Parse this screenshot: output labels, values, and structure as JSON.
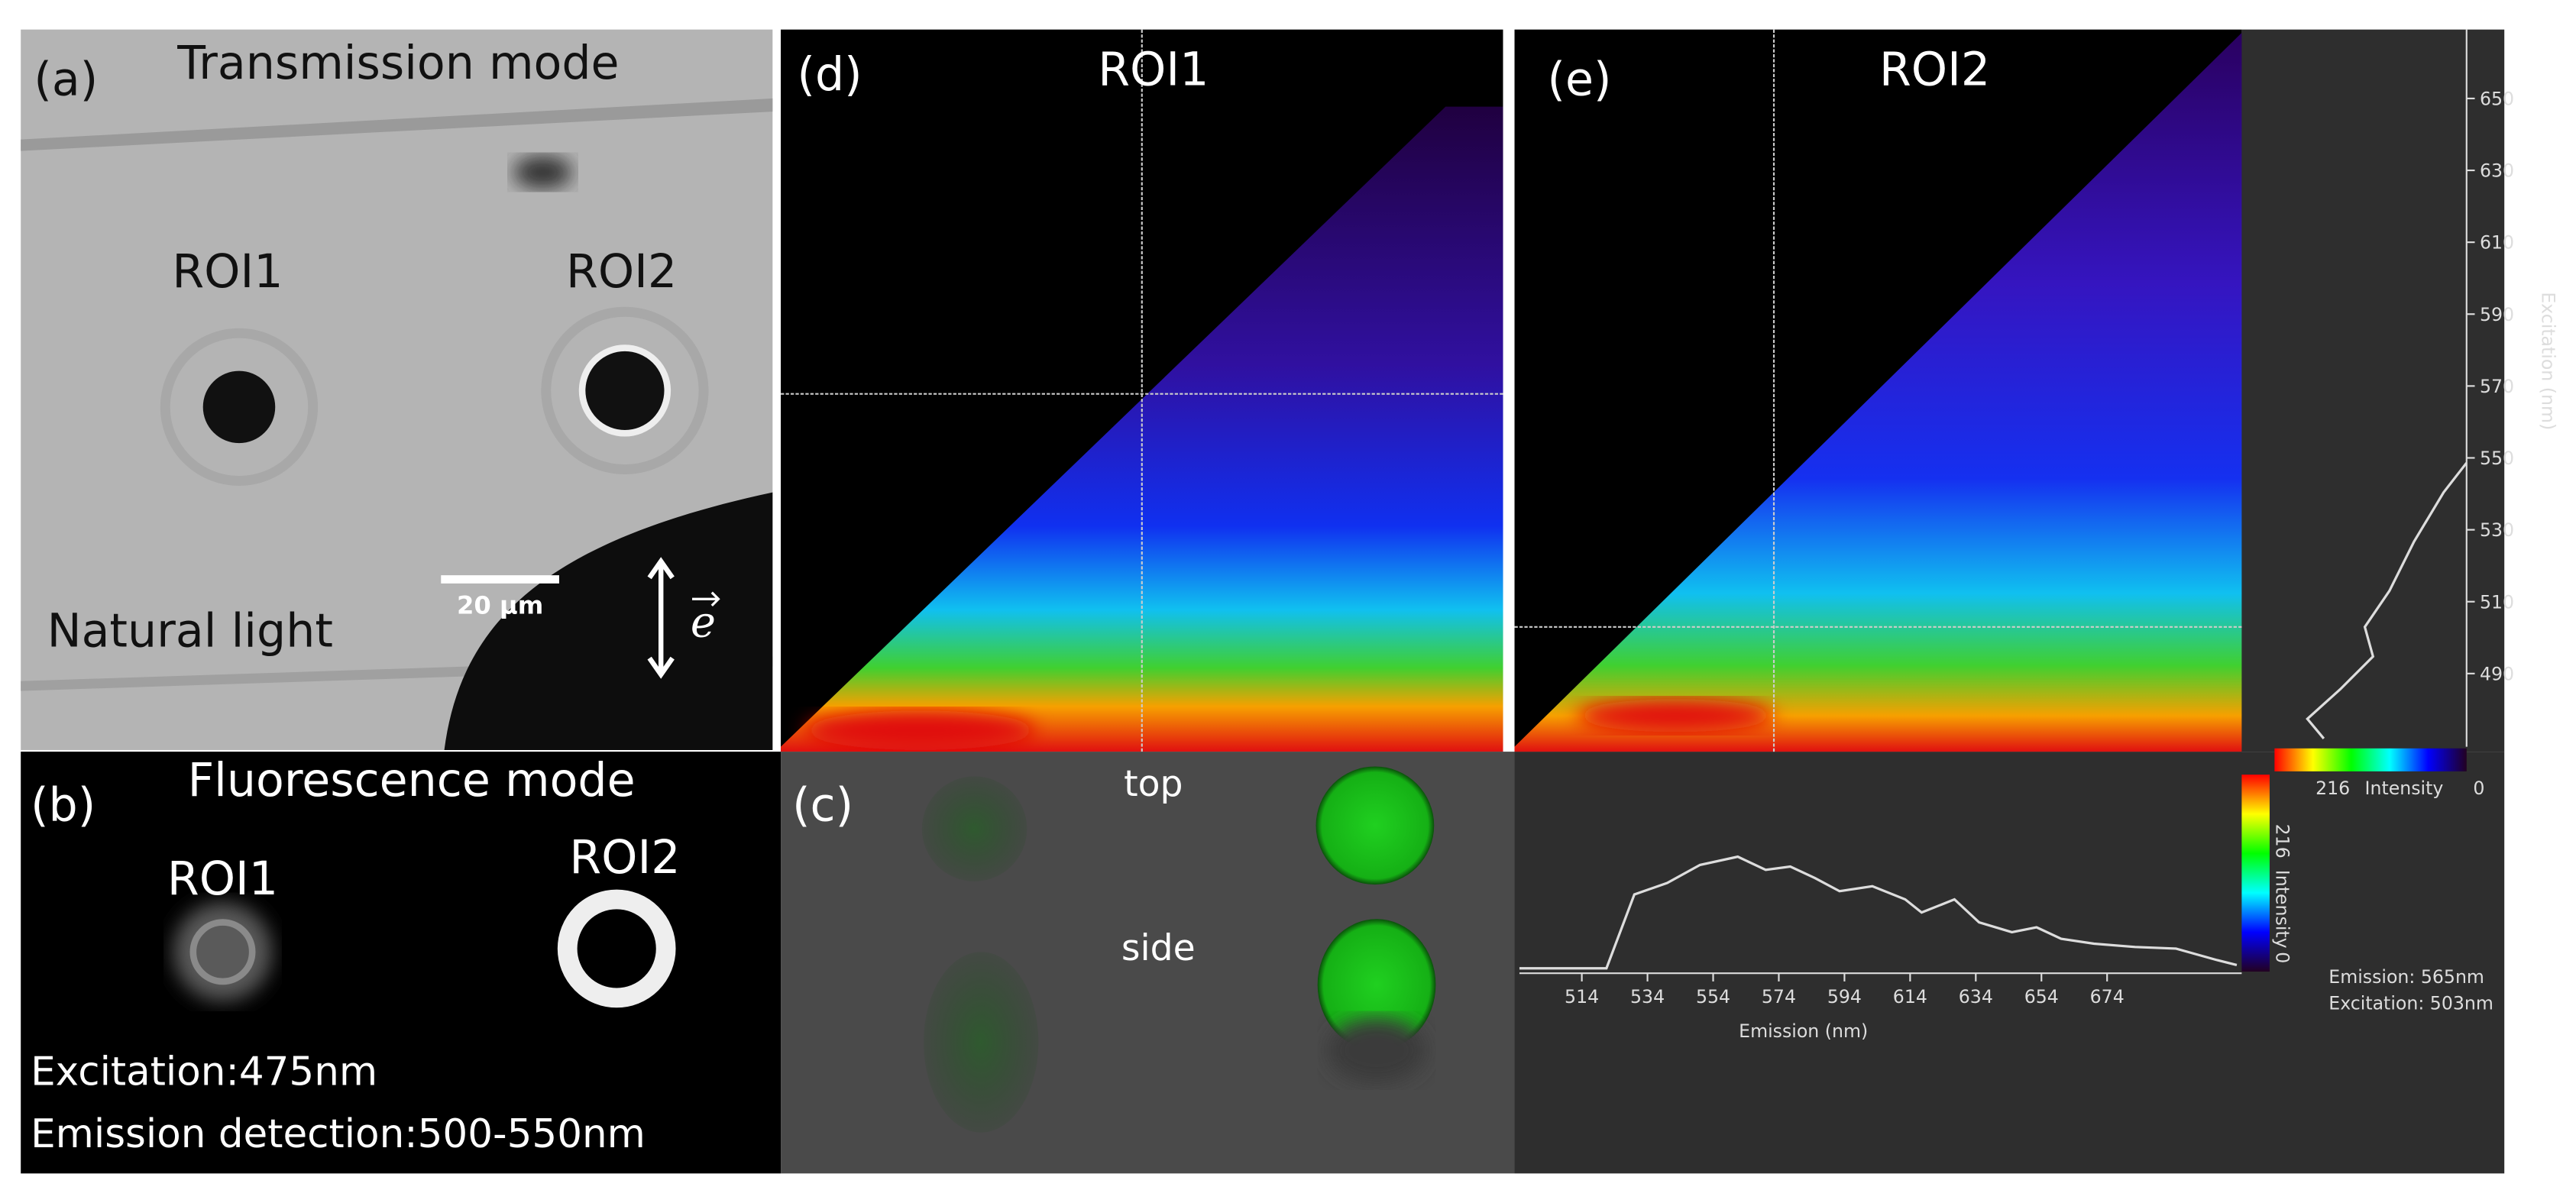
{
  "panel_a": {
    "label": "(a)",
    "title": "Transmission mode",
    "roi1": "ROI1",
    "roi2": "ROI2",
    "caption": "Natural light",
    "scale_bar": "20 μm",
    "polarization": "e"
  },
  "panel_b": {
    "label": "(b)",
    "title": "Fluorescence mode",
    "roi1": "ROI1",
    "roi2": "ROI2",
    "excitation": "Excitation:475nm",
    "emission": "Emission detection:500-550nm"
  },
  "panel_c": {
    "label": "(c)",
    "top": "top",
    "side": "side"
  },
  "panel_d": {
    "label": "(d)",
    "title": "ROI1"
  },
  "panel_e": {
    "label": "(e)",
    "title": "ROI2",
    "excitation_axis": {
      "label": "Excitation (nm)",
      "ticks": [
        650,
        630,
        610,
        590,
        570,
        550,
        530,
        510,
        490
      ]
    },
    "emission_axis": {
      "label": "Emission (nm)",
      "ticks": [
        514,
        534,
        554,
        574,
        594,
        614,
        634,
        654,
        674
      ]
    },
    "colorbar": {
      "max": 216,
      "label": "Intensity",
      "min": 0
    },
    "readout": {
      "emission": "Emission: 565nm",
      "excitation": "Excitation: 503nm"
    }
  }
}
